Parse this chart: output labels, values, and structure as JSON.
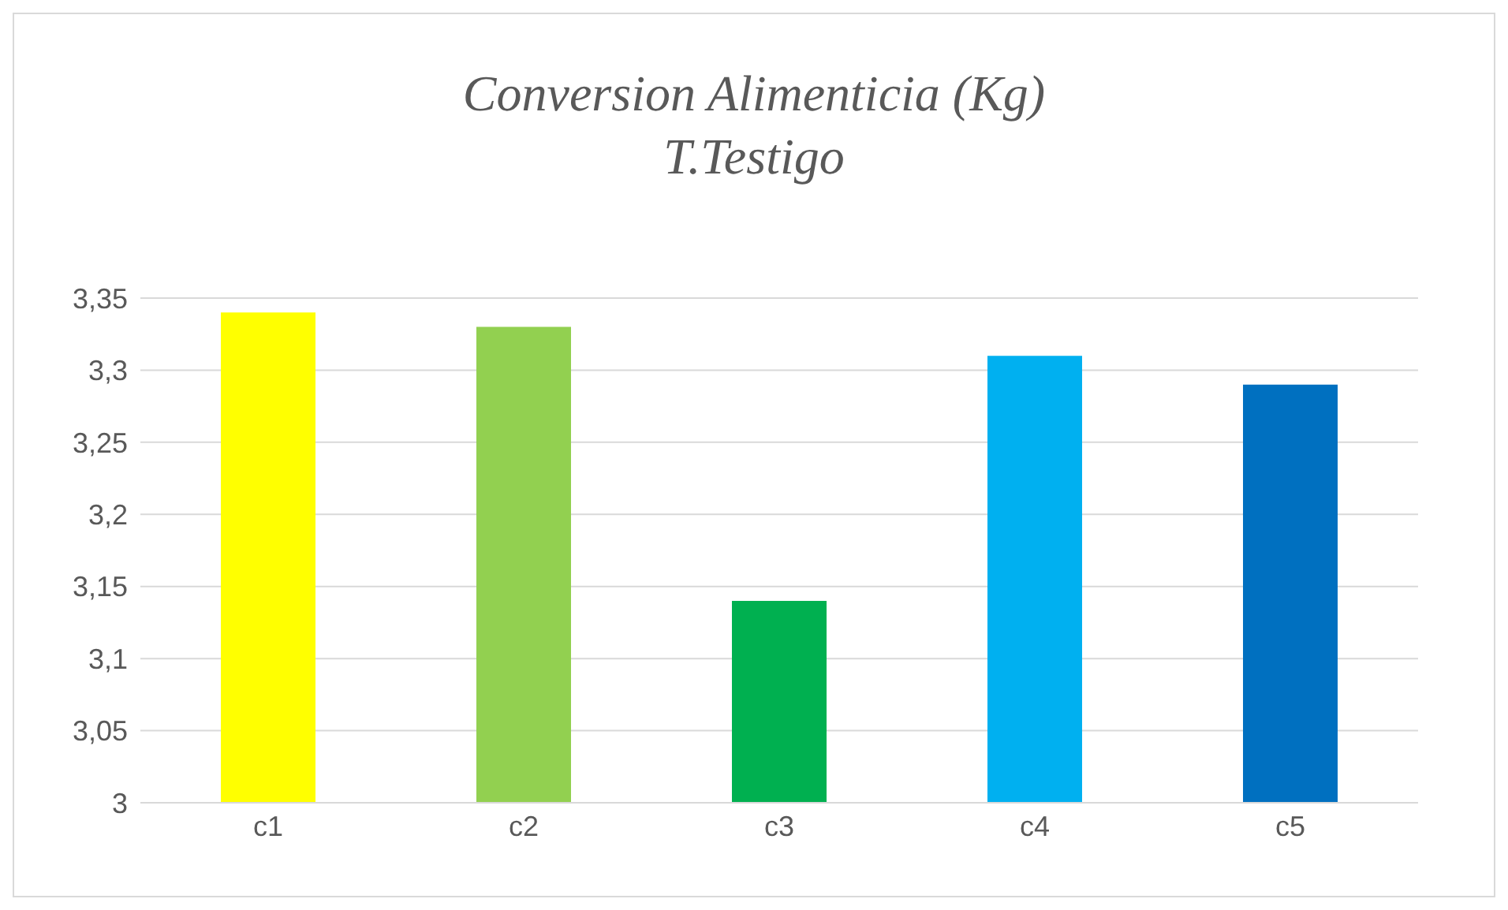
{
  "chart_data": {
    "type": "bar",
    "title": "Conversion Alimenticia (Kg)",
    "subtitle": "T.Testigo",
    "categories": [
      "c1",
      "c2",
      "c3",
      "c4",
      "c5"
    ],
    "values": [
      3.34,
      3.33,
      3.14,
      3.31,
      3.29
    ],
    "colors": [
      "#ffff00",
      "#92d050",
      "#00b050",
      "#00b0f0",
      "#0070c0"
    ],
    "ylim": [
      3,
      3.35
    ],
    "yticks": [
      {
        "value": 3,
        "label": "3"
      },
      {
        "value": 3.05,
        "label": "3,05"
      },
      {
        "value": 3.1,
        "label": "3,1"
      },
      {
        "value": 3.15,
        "label": "3,15"
      },
      {
        "value": 3.2,
        "label": "3,2"
      },
      {
        "value": 3.25,
        "label": "3,25"
      },
      {
        "value": 3.3,
        "label": "3,3"
      },
      {
        "value": 3.35,
        "label": "3,35"
      }
    ],
    "grid": "y"
  }
}
